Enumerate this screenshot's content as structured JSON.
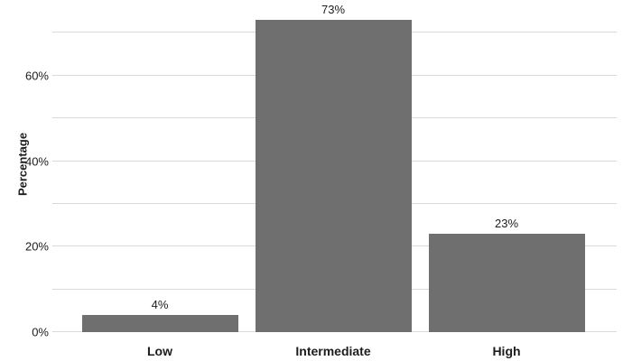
{
  "chart_data": {
    "type": "bar",
    "title": "",
    "categories": [
      "Low",
      "Intermediate",
      "High"
    ],
    "values": [
      4,
      73,
      23
    ],
    "bar_labels": [
      "4%",
      "73%",
      "23%"
    ],
    "xlabel": "",
    "ylabel": "Percentage",
    "ylim": [
      0,
      76
    ],
    "yticks": [
      {
        "value": 0,
        "label": "0%"
      },
      {
        "value": 20,
        "label": "20%"
      },
      {
        "value": 40,
        "label": "40%"
      },
      {
        "value": 60,
        "label": "60%"
      }
    ],
    "gridlines": [
      0,
      10,
      20,
      30,
      40,
      50,
      60,
      70
    ],
    "grid": "horizontal",
    "legend": "none",
    "bar_color": "#6f6f6f",
    "gridline_color": "#d9d9d9",
    "background": "#ffffff",
    "text_color": "#1c1c1c"
  }
}
